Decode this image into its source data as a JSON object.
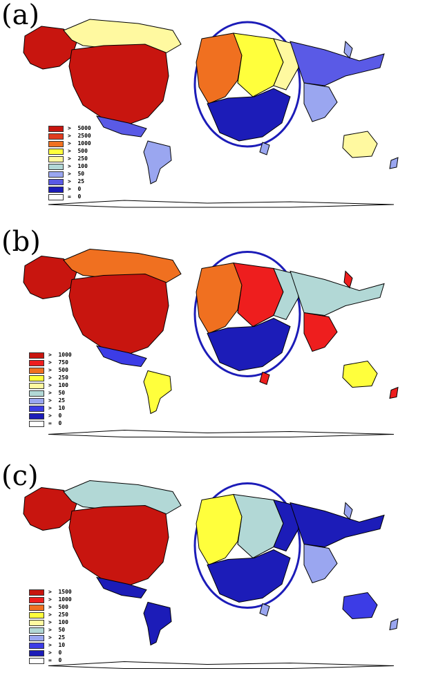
{
  "panels": [
    {
      "label": "(a)",
      "legend": [
        {
          "op": ">",
          "value": "5000",
          "color": "#c8150f"
        },
        {
          "op": ">",
          "value": "2500",
          "color": "#e03d20"
        },
        {
          "op": ">",
          "value": "1000",
          "color": "#f07020"
        },
        {
          "op": ">",
          "value": "500",
          "color": "#ffff3c"
        },
        {
          "op": ">",
          "value": "250",
          "color": "#fff9a0"
        },
        {
          "op": ">",
          "value": "100",
          "color": "#b2d8d6"
        },
        {
          "op": ">",
          "value": "50",
          "color": "#9aa6f0"
        },
        {
          "op": ">",
          "value": "25",
          "color": "#5a5ae6"
        },
        {
          "op": ">",
          "value": "0",
          "color": "#1c1cb8"
        },
        {
          "op": "=",
          "value": "0",
          "color": "#ffffff"
        }
      ],
      "regions": {
        "north_america": "#c8150f",
        "canada": "#fff9a0",
        "alaska": "#c8150f",
        "europe_west": "#f07020",
        "europe_central": "#ffff3c",
        "europe_east": "#fff9a0",
        "russia": "#5a5ae6",
        "east_asia": "#9aa6f0",
        "australia": "#fff9a0",
        "south_america": "#9aa6f0",
        "africa": "#1c1cb8",
        "mexico": "#5a5ae6"
      }
    },
    {
      "label": "(b)",
      "legend": [
        {
          "op": ">",
          "value": "1000",
          "color": "#c8150f"
        },
        {
          "op": ">",
          "value": "750",
          "color": "#ee1e1e"
        },
        {
          "op": ">",
          "value": "500",
          "color": "#f07020"
        },
        {
          "op": ">",
          "value": "250",
          "color": "#ffff3c"
        },
        {
          "op": ">",
          "value": "100",
          "color": "#fff9a0"
        },
        {
          "op": ">",
          "value": "50",
          "color": "#b2d8d6"
        },
        {
          "op": ">",
          "value": "25",
          "color": "#9aa6f0"
        },
        {
          "op": ">",
          "value": "10",
          "color": "#3c3ce6"
        },
        {
          "op": ">",
          "value": "0",
          "color": "#1c1cb8"
        },
        {
          "op": "=",
          "value": "0",
          "color": "#ffffff"
        }
      ],
      "regions": {
        "north_america": "#c8150f",
        "canada": "#f07020",
        "alaska": "#c8150f",
        "europe_west": "#f07020",
        "europe_central": "#ee1e1e",
        "europe_east": "#b2d8d6",
        "russia": "#b2d8d6",
        "east_asia": "#ee1e1e",
        "australia": "#ffff3c",
        "south_america": "#ffff3c",
        "africa": "#1c1cb8",
        "mexico": "#3c3ce6"
      }
    },
    {
      "label": "(c)",
      "legend": [
        {
          "op": ">",
          "value": "1500",
          "color": "#c8150f"
        },
        {
          "op": ">",
          "value": "1000",
          "color": "#ee1e1e"
        },
        {
          "op": ">",
          "value": "500",
          "color": "#f07020"
        },
        {
          "op": ">",
          "value": "250",
          "color": "#ffff3c"
        },
        {
          "op": ">",
          "value": "100",
          "color": "#fff9a0"
        },
        {
          "op": ">",
          "value": "50",
          "color": "#b2d8d6"
        },
        {
          "op": ">",
          "value": "25",
          "color": "#9aa6f0"
        },
        {
          "op": ">",
          "value": "10",
          "color": "#3c3ce6"
        },
        {
          "op": ">",
          "value": "0",
          "color": "#1c1cb8"
        },
        {
          "op": "=",
          "value": "0",
          "color": "#ffffff"
        }
      ],
      "regions": {
        "north_america": "#c8150f",
        "canada": "#b2d8d6",
        "alaska": "#c8150f",
        "europe_west": "#ffff3c",
        "europe_central": "#b2d8d6",
        "europe_east": "#1c1cb8",
        "russia": "#1c1cb8",
        "east_asia": "#9aa6f0",
        "australia": "#3c3ce6",
        "south_america": "#1c1cb8",
        "africa": "#1c1cb8",
        "mexico": "#1c1cb8"
      }
    }
  ]
}
